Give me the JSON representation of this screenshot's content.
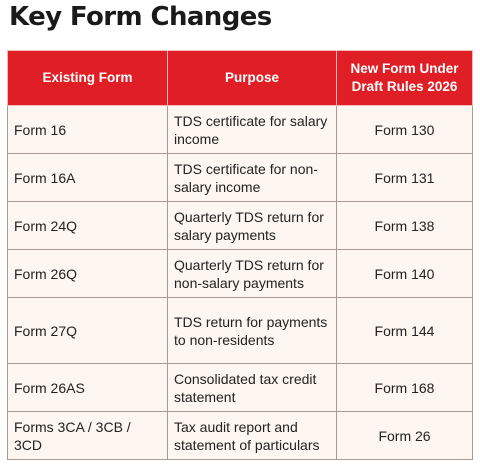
{
  "title": "Key Form Changes",
  "columns": [
    "Existing Form",
    "Purpose",
    "New Form Under Draft Rules 2026"
  ],
  "rows": [
    {
      "existing": "Form 16",
      "purpose": "TDS certificate for salary income",
      "new_form": "Form 130"
    },
    {
      "existing": "Form 16A",
      "purpose": "TDS certificate for non-salary income",
      "new_form": "Form 131"
    },
    {
      "existing": "Form 24Q",
      "purpose": "Quarterly TDS return for salary payments",
      "new_form": "Form 138"
    },
    {
      "existing": "Form 26Q",
      "purpose": "Quarterly TDS return for non-salary payments",
      "new_form": "Form 140"
    },
    {
      "existing": "Form 27Q",
      "purpose": "TDS return for payments to non-residents",
      "new_form": "Form 144"
    },
    {
      "existing": "Form 26AS",
      "purpose": "Consolidated tax credit statement",
      "new_form": "Form 168"
    },
    {
      "existing": "Forms 3CA / 3CB / 3CD",
      "purpose": "Tax audit report and statement of particulars",
      "new_form": "Form 26"
    }
  ]
}
